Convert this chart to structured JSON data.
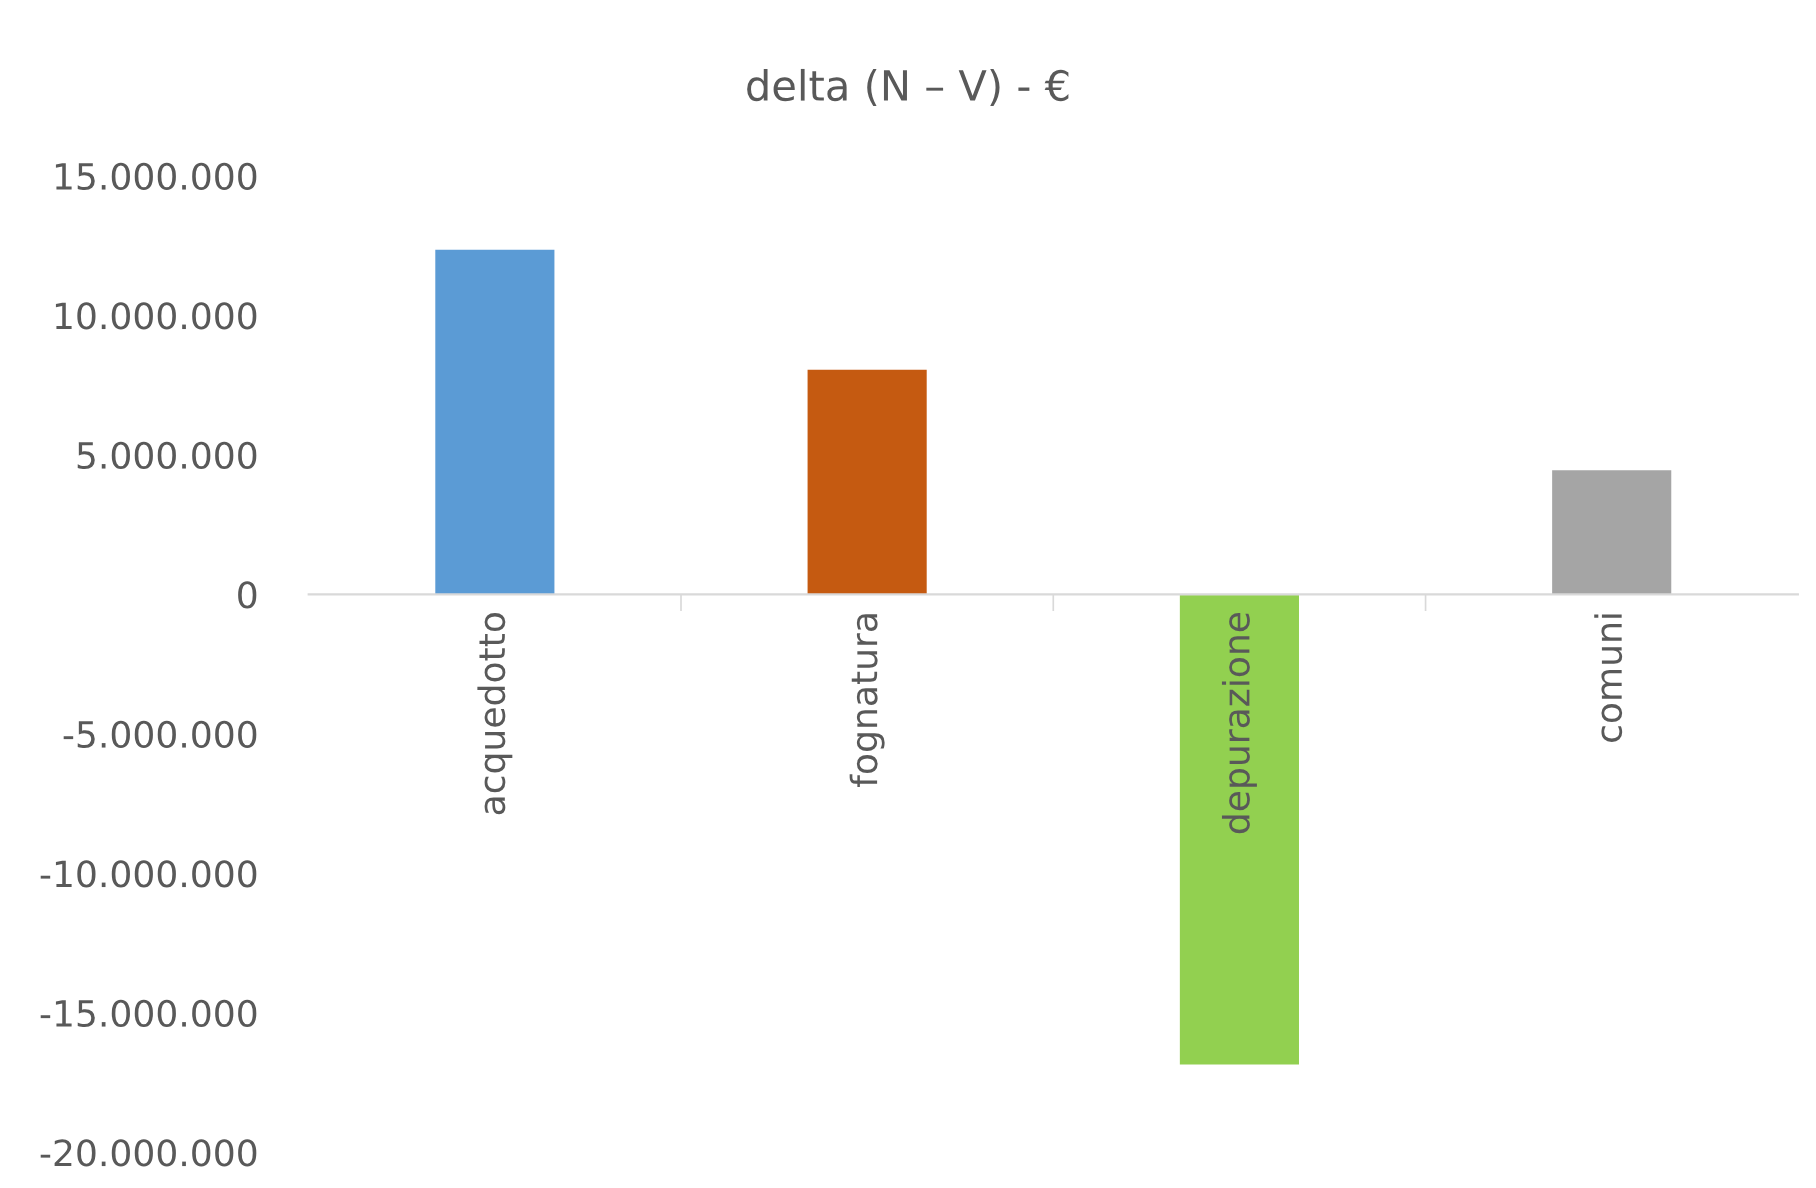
{
  "chart_data": {
    "type": "bar",
    "title": "delta (N – V) - €",
    "categories": [
      "acquedotto",
      "fognatura",
      "depurazione",
      "comuni"
    ],
    "values": [
      12350000,
      8050000,
      -16850000,
      4450000
    ],
    "colors": [
      "#5b9bd5",
      "#c55a11",
      "#92d050",
      "#a5a5a5"
    ],
    "ylim": [
      -20000000,
      15000000
    ],
    "yticks": [
      {
        "value": -20000000,
        "label": "-20.000.000"
      },
      {
        "value": -15000000,
        "label": "-15.000.000"
      },
      {
        "value": -10000000,
        "label": "-10.000.000"
      },
      {
        "value": -5000000,
        "label": "-5.000.000"
      },
      0,
      {
        "value": 5000000,
        "label": "5.000.000"
      },
      {
        "value": 10000000,
        "label": "10.000.000"
      },
      {
        "value": 15000000,
        "label": "15.000.000"
      }
    ],
    "grid": false,
    "legend": false
  }
}
